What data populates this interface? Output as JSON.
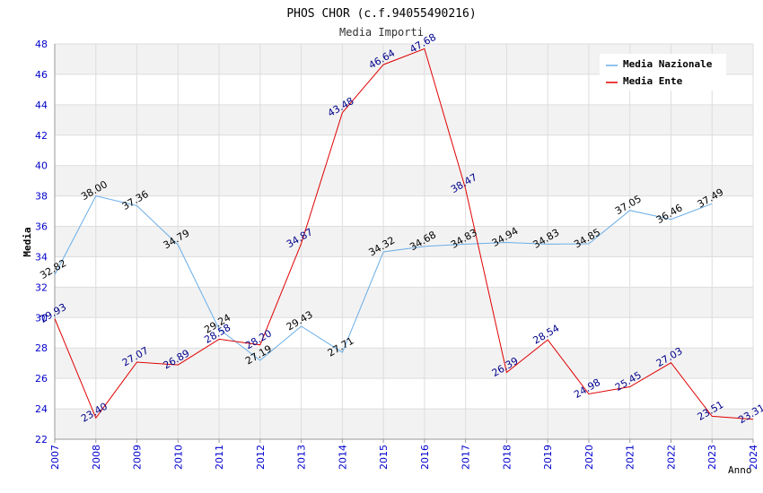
{
  "chart_data": {
    "type": "line",
    "title": "PHOS CHOR (c.f.94055490216)",
    "subtitle": "Media Importi",
    "xlabel": "Anno",
    "ylabel": "Media",
    "x": [
      2007,
      2008,
      2009,
      2010,
      2011,
      2012,
      2013,
      2014,
      2015,
      2016,
      2017,
      2018,
      2019,
      2020,
      2021,
      2022,
      2023,
      2024
    ],
    "xlim": [
      2007,
      2024
    ],
    "ylim": [
      22,
      48
    ],
    "yticks": [
      22,
      24,
      26,
      28,
      30,
      32,
      34,
      36,
      38,
      40,
      42,
      44,
      46,
      48
    ],
    "grid": true,
    "legend_position": "top-right",
    "series": [
      {
        "name": "Media Nazionale",
        "color": "#6aaee8",
        "label_color": "#000000",
        "x": [
          2007,
          2008,
          2009,
          2010,
          2011,
          2012,
          2013,
          2014,
          2015,
          2016,
          2017,
          2018,
          2019,
          2020,
          2021,
          2022,
          2023
        ],
        "values": [
          32.82,
          38.0,
          37.36,
          34.79,
          29.24,
          27.19,
          29.43,
          27.71,
          34.32,
          34.68,
          34.83,
          34.94,
          34.83,
          34.85,
          37.05,
          36.46,
          37.49
        ],
        "labels": [
          "32.82",
          "38.00",
          "37.36",
          "34.79",
          "29.24",
          "27.19",
          "29.43",
          "27.71",
          "34.32",
          "34.68",
          "34.83",
          "34.94",
          "34.83",
          "34.85",
          "37.05",
          "36.46",
          "37.49"
        ]
      },
      {
        "name": "Media Ente",
        "color": "#e00000",
        "label_color": "#00008b",
        "x": [
          2007,
          2008,
          2009,
          2010,
          2011,
          2012,
          2013,
          2014,
          2015,
          2016,
          2017,
          2018,
          2019,
          2020,
          2021,
          2022,
          2023,
          2024
        ],
        "values": [
          29.93,
          23.4,
          27.07,
          26.89,
          28.58,
          28.2,
          34.87,
          43.48,
          46.64,
          47.68,
          38.47,
          26.39,
          28.54,
          24.98,
          25.45,
          27.03,
          23.51,
          23.31
        ],
        "labels": [
          "29.93",
          "23.40",
          "27.07",
          "26.89",
          "28.58",
          "28.20",
          "34.87",
          "43.48",
          "46.64",
          "47.68",
          "38.47",
          "26.39",
          "28.54",
          "24.98",
          "25.45",
          "27.03",
          "23.51",
          "23.31"
        ]
      }
    ]
  }
}
